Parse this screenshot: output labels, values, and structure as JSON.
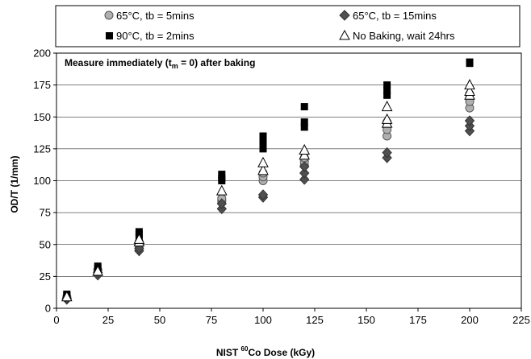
{
  "chart_data": {
    "type": "scatter",
    "annotation": "Measure immediately (t_m = 0) after baking",
    "annotation_parts": {
      "main": "Measure immediately (t",
      "sub": "m",
      "tail": " = 0) after baking"
    },
    "xlabel": "NIST 60Co Dose (kGy)",
    "xlabel_parts": {
      "pre": "NIST ",
      "sup": "60",
      "post": "Co Dose (kGy)"
    },
    "ylabel": "OD/T (1/mm)",
    "xlim": [
      0,
      225
    ],
    "ylim": [
      0,
      200
    ],
    "xticks": [
      "0",
      "25",
      "50",
      "75",
      "100",
      "125",
      "150",
      "175",
      "200",
      "225"
    ],
    "yticks": [
      "0",
      "25",
      "50",
      "75",
      "100",
      "125",
      "150",
      "175",
      "200"
    ],
    "grid": "horizontal",
    "legend_position": "top",
    "series": [
      {
        "name": "65°C, tb = 5mins",
        "marker": "circle",
        "color": "#b0b0b0",
        "points": [
          [
            5,
            8
          ],
          [
            5,
            9
          ],
          [
            20,
            28
          ],
          [
            20,
            30
          ],
          [
            40,
            47
          ],
          [
            40,
            50
          ],
          [
            40,
            52
          ],
          [
            80,
            84
          ],
          [
            80,
            86
          ],
          [
            100,
            100
          ],
          [
            100,
            103
          ],
          [
            100,
            106
          ],
          [
            120,
            112
          ],
          [
            120,
            115
          ],
          [
            120,
            118
          ],
          [
            160,
            135
          ],
          [
            160,
            140
          ],
          [
            160,
            146
          ],
          [
            200,
            157
          ],
          [
            200,
            162
          ],
          [
            200,
            168
          ]
        ]
      },
      {
        "name": "65°C, tb = 15mins",
        "marker": "diamond",
        "color": "#505050",
        "points": [
          [
            5,
            7
          ],
          [
            5,
            8
          ],
          [
            20,
            26
          ],
          [
            20,
            28
          ],
          [
            40,
            45
          ],
          [
            40,
            47
          ],
          [
            80,
            78
          ],
          [
            80,
            82
          ],
          [
            100,
            87
          ],
          [
            100,
            89
          ],
          [
            120,
            101
          ],
          [
            120,
            106
          ],
          [
            120,
            111
          ],
          [
            160,
            118
          ],
          [
            160,
            122
          ],
          [
            200,
            139
          ],
          [
            200,
            143
          ],
          [
            200,
            147
          ]
        ]
      },
      {
        "name": "90°C, tb = 2mins",
        "marker": "square",
        "color": "#000000",
        "points": [
          [
            5,
            10
          ],
          [
            5,
            11
          ],
          [
            20,
            31
          ],
          [
            20,
            33
          ],
          [
            40,
            55
          ],
          [
            40,
            58
          ],
          [
            40,
            60
          ],
          [
            80,
            100
          ],
          [
            80,
            102
          ],
          [
            80,
            105
          ],
          [
            100,
            125
          ],
          [
            100,
            128
          ],
          [
            100,
            132
          ],
          [
            100,
            135
          ],
          [
            120,
            142
          ],
          [
            120,
            146
          ],
          [
            120,
            158
          ],
          [
            160,
            167
          ],
          [
            160,
            171
          ],
          [
            160,
            175
          ],
          [
            200,
            192
          ],
          [
            200,
            193
          ]
        ]
      },
      {
        "name": "No Baking, wait 24hrs",
        "marker": "triangle",
        "color": "#ffffff",
        "points": [
          [
            5,
            9
          ],
          [
            20,
            29
          ],
          [
            40,
            52
          ],
          [
            40,
            54
          ],
          [
            80,
            92
          ],
          [
            100,
            108
          ],
          [
            100,
            114
          ],
          [
            120,
            120
          ],
          [
            120,
            124
          ],
          [
            160,
            145
          ],
          [
            160,
            148
          ],
          [
            160,
            158
          ],
          [
            200,
            167
          ],
          [
            200,
            170
          ],
          [
            200,
            175
          ]
        ]
      }
    ]
  }
}
